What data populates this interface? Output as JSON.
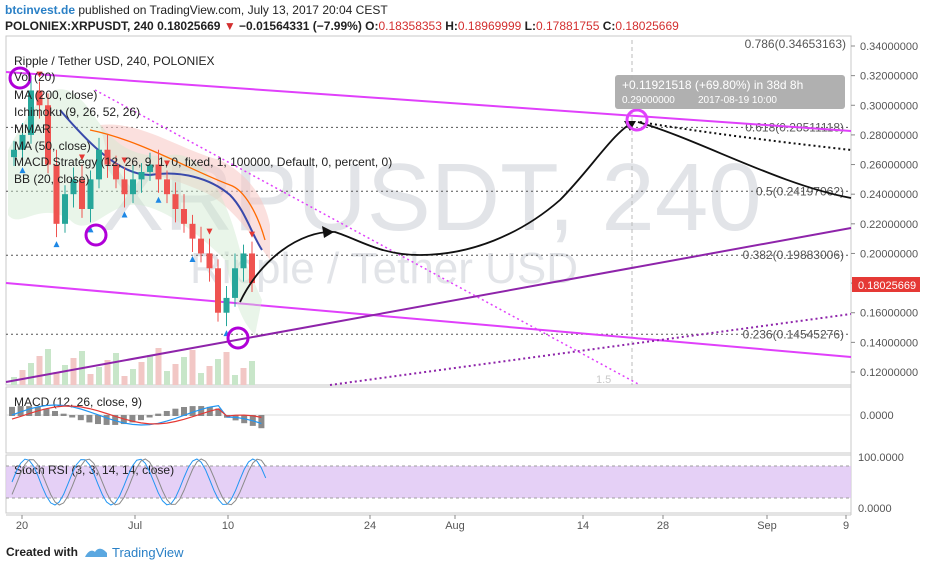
{
  "header": {
    "site": "btcinvest.de",
    "published_text": "published on TradingView.com, July 13, 2017 20:04 CEST",
    "symbol": "POLONIEX:XRPUSDT, 240",
    "last_price": "0.18025669",
    "change_arrow": "▼",
    "change": "−0.01564331 (−7.99%)",
    "o_label": "O:",
    "o_value": "0.18358353",
    "h_label": "H:",
    "h_value": "0.18969999",
    "l_label": "L:",
    "l_value": "0.17881755",
    "c_label": "C:",
    "c_value": "0.18025669"
  },
  "watermark": {
    "symbol": "XRPUSDT, 240",
    "name": "Ripple / Tether USD"
  },
  "main_panel": {
    "legend": [
      "Ripple / Tether USD, 240, POLONIEX",
      "Vol (20)",
      "MA (200, close)",
      "Ichimoku (9, 26, 52, 26)",
      "MMAR",
      "MA (50, close)",
      "MACD Strategy (12, 26, 9, 1, 0, fixed, 1, 100000, Default, 0, percent, 0)",
      "BB (20, close)"
    ],
    "current_price_tag": "0.18025669",
    "measure_label": "+0.11921518 (+69.80%) in 38d 8h",
    "measure_sub_price": "0.29000000",
    "measure_sub_date": "2017-08-19  10:00",
    "bottom_label": "1.5"
  },
  "colors": {
    "up": "#26a69a",
    "down": "#ef5350",
    "magenta_line": "#e040fb",
    "purple_line": "#8e24aa",
    "circle": "#b000d8",
    "accent_blue": "#2a80c6",
    "price_tag": "#e53935",
    "stoch_band": "#e0c8f5"
  },
  "chart_data": [
    {
      "type": "candlestick",
      "title": "Ripple / Tether USD, 240, POLONIEX",
      "y_axis": {
        "ticks": [
          "0.34000000",
          "0.32000000",
          "0.30000000",
          "0.28000000",
          "0.26000000",
          "0.24000000",
          "0.22000000",
          "0.20000000",
          "0.18000000",
          "0.16000000",
          "0.14000000",
          "0.12000000"
        ],
        "ylim": [
          0.11,
          0.345
        ]
      },
      "x_axis": {
        "ticks": [
          "20",
          "Jul",
          "10",
          "24",
          "Aug",
          "14",
          "28",
          "Sep",
          "9"
        ]
      },
      "fibonacci": [
        {
          "label": "0.786(0.34653163)",
          "value": 0.34653163
        },
        {
          "label": "0.618(0.28511118)",
          "value": 0.28511118
        },
        {
          "label": "0.5(0.24197062)",
          "value": 0.24197062
        },
        {
          "label": "0.382(0.19883006)",
          "value": 0.19883006
        },
        {
          "label": "0.236(0.14545276)",
          "value": 0.14545276
        }
      ],
      "current_price": 0.18025669,
      "projection_target": {
        "price": 0.29,
        "date": "2017-08-19 10:00"
      },
      "close_series": [
        0.27,
        0.28,
        0.31,
        0.3,
        0.26,
        0.22,
        0.24,
        0.25,
        0.23,
        0.25,
        0.27,
        0.26,
        0.25,
        0.24,
        0.25,
        0.255,
        0.26,
        0.25,
        0.24,
        0.23,
        0.22,
        0.21,
        0.2,
        0.19,
        0.16,
        0.17,
        0.19,
        0.2,
        0.18
      ]
    },
    {
      "type": "line",
      "title": "MACD (12, 26, close, 9)",
      "y_ticks": [
        "0.0000"
      ]
    },
    {
      "type": "line",
      "title": "Stoch RSI (3, 3, 14, 14, close)",
      "y_ticks": [
        "100.0000",
        "0.0000"
      ]
    }
  ],
  "footer": {
    "created_with": "Created with",
    "brand": "TradingView"
  }
}
